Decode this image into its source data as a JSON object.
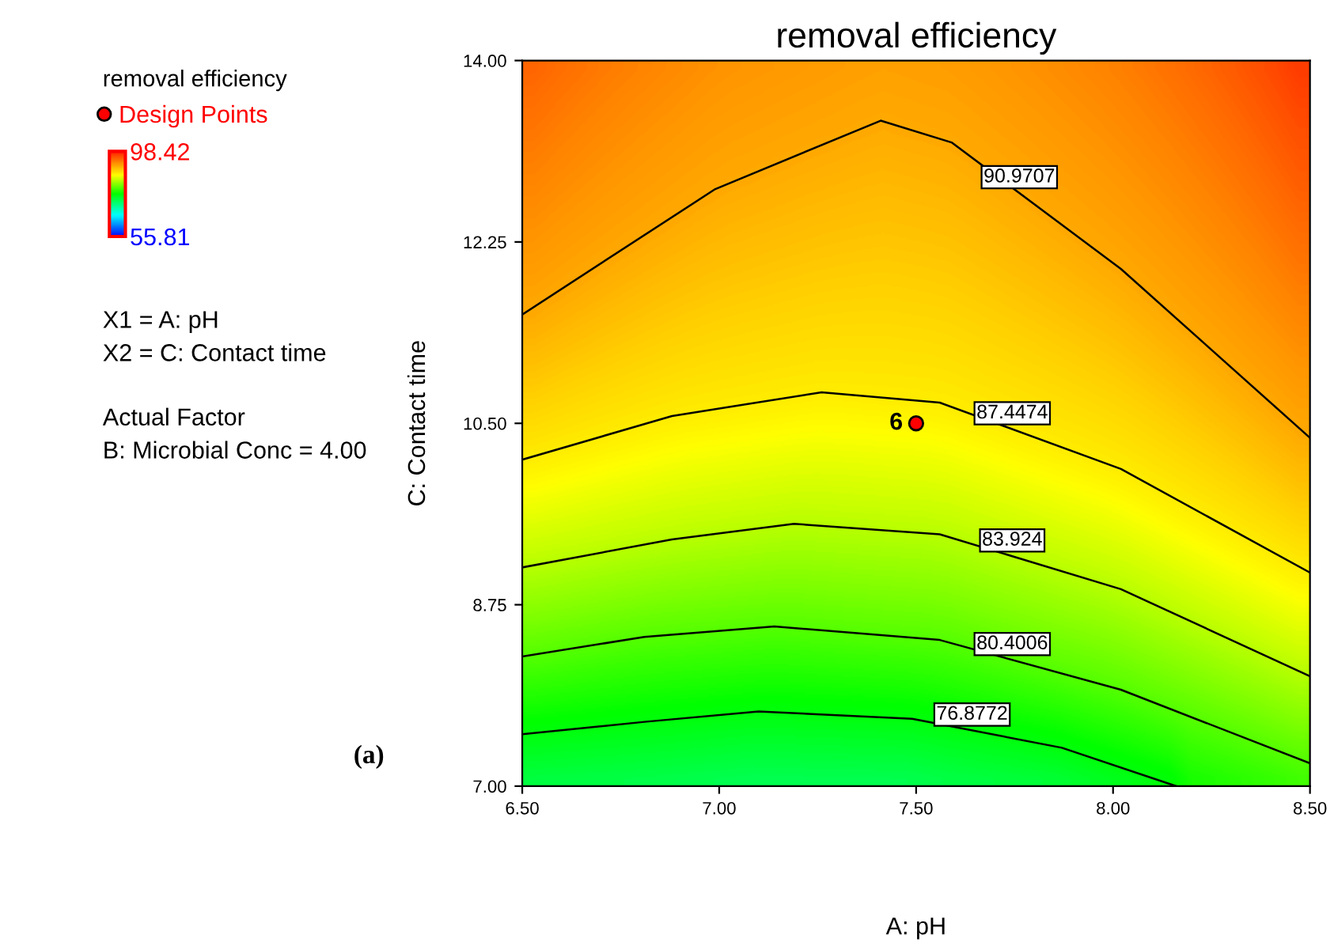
{
  "chart_data": {
    "type": "line",
    "title": "removal efficiency",
    "xlabel": "A: pH",
    "ylabel": "C: Contact time",
    "clabel": "removal efficiency",
    "clim": [
      55.81,
      98.42
    ],
    "cticks": [
      55.81,
      98.42
    ],
    "xlim": [
      6.5,
      8.5
    ],
    "ylim": [
      7.0,
      14.0
    ],
    "xticks": [
      {
        "value": 6.5,
        "label": "6.50"
      },
      {
        "value": 7.0,
        "label": "7.00"
      },
      {
        "value": 7.5,
        "label": "7.50"
      },
      {
        "value": 8.0,
        "label": "8.00"
      },
      {
        "value": 8.5,
        "label": "8.50"
      }
    ],
    "yticks": [
      {
        "value": 7.0,
        "label": "7.00"
      },
      {
        "value": 8.75,
        "label": "8.75"
      },
      {
        "value": 10.5,
        "label": "10.50"
      },
      {
        "value": 12.25,
        "label": "12.25"
      },
      {
        "value": 14.0,
        "label": "14.00"
      }
    ],
    "grid": false,
    "legend": "left",
    "line_style": "solid",
    "series": [
      {
        "name": "90.9707",
        "color": "#000000",
        "x": [
          6.5,
          6.99,
          7.41,
          7.59,
          8.02,
          8.5
        ],
        "values": [
          11.55,
          12.76,
          13.42,
          13.21,
          11.99,
          10.36
        ]
      },
      {
        "name": "87.4474",
        "color": "#000000",
        "x": [
          6.5,
          6.88,
          7.26,
          7.56,
          8.02,
          8.5
        ],
        "values": [
          10.15,
          10.57,
          10.8,
          10.7,
          10.06,
          9.06
        ]
      },
      {
        "name": "83.924",
        "color": "#000000",
        "x": [
          6.5,
          6.88,
          7.19,
          7.56,
          8.02,
          8.5
        ],
        "values": [
          9.11,
          9.38,
          9.53,
          9.43,
          8.9,
          8.06
        ]
      },
      {
        "name": "80.4006",
        "color": "#000000",
        "x": [
          6.5,
          6.81,
          7.14,
          7.56,
          8.02,
          8.5
        ],
        "values": [
          8.25,
          8.44,
          8.54,
          8.41,
          7.93,
          7.22
        ]
      },
      {
        "name": "76.8772",
        "color": "#000000",
        "x": [
          6.5,
          6.81,
          7.1,
          7.49,
          7.87,
          8.16
        ],
        "values": [
          7.5,
          7.62,
          7.72,
          7.65,
          7.37,
          7.0
        ]
      },
      {
        "name": "Design Points",
        "type": "scatter",
        "color": "#ff0000",
        "marker": "circle",
        "x": [
          7.5
        ],
        "values": [
          10.5
        ]
      }
    ],
    "annotations": [
      {
        "text": "6",
        "x": 7.5,
        "y": 10.5
      },
      "X1 = A: pH",
      "X2 = C: Contact time",
      "Actual Factor",
      "B: Microbial Conc = 4.00",
      "(a)"
    ]
  }
}
